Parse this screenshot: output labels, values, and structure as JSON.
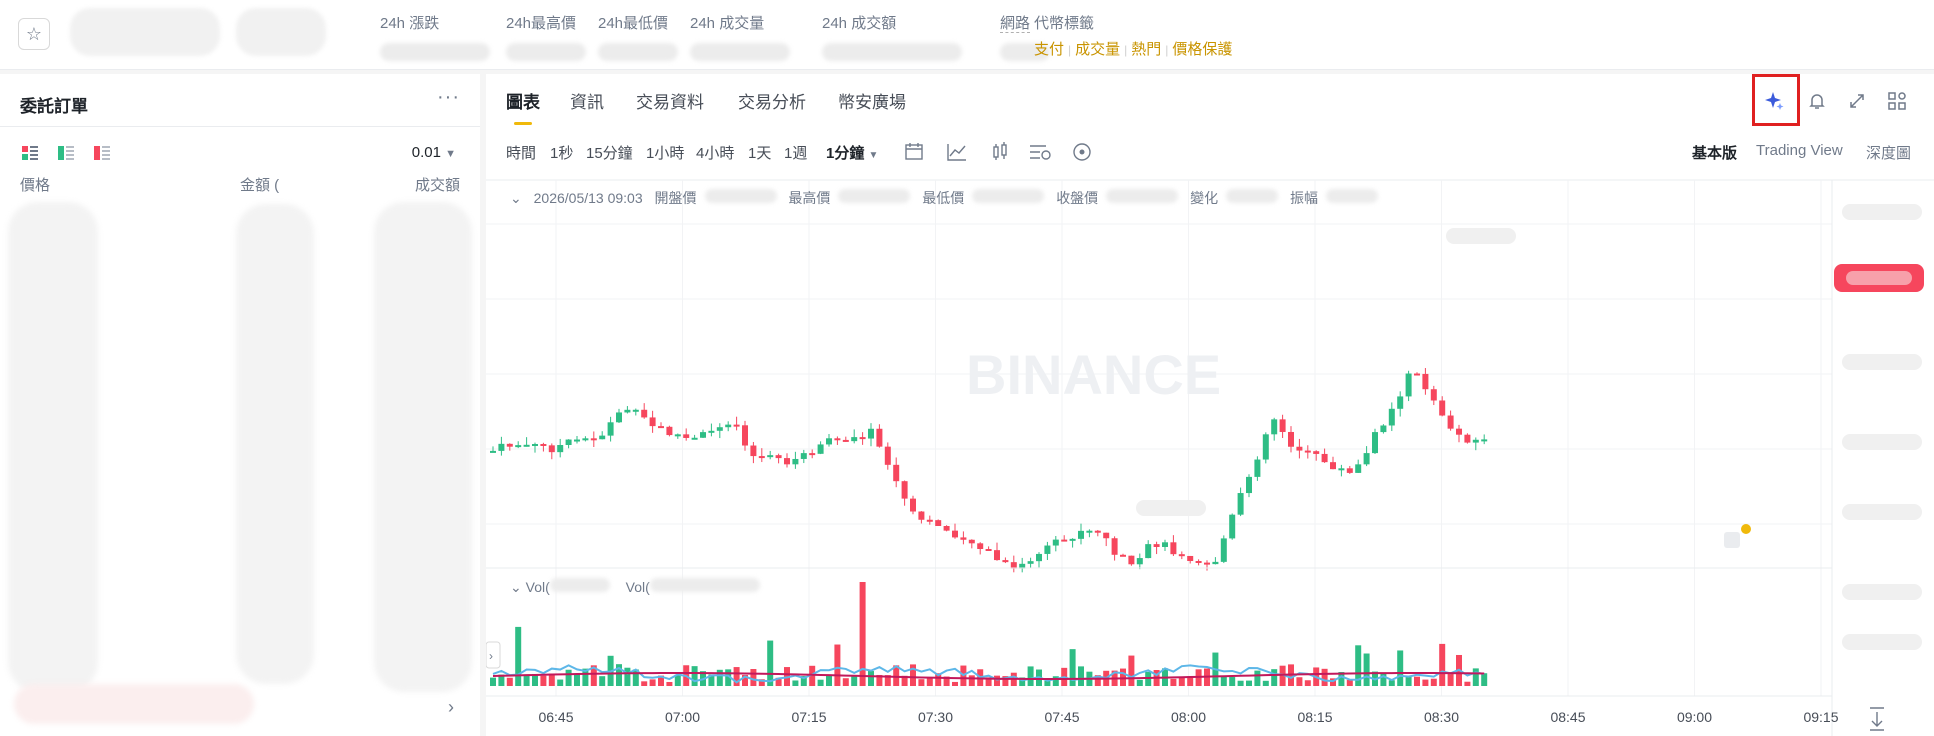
{
  "header": {
    "stats": [
      {
        "label": "24h 漲跌"
      },
      {
        "label": "24h最高價"
      },
      {
        "label": "24h最低價"
      },
      {
        "label": "24h 成交量"
      },
      {
        "label": "24h 成交額"
      },
      {
        "label": "網路"
      },
      {
        "label": "代幣標籤"
      }
    ],
    "tags": [
      "支付",
      "成交量",
      "熱門",
      "價格保護"
    ]
  },
  "orderbook": {
    "title": "委託訂單",
    "more": "···",
    "step": "0.01",
    "columns": [
      "價格",
      "金額 (",
      "成交額"
    ]
  },
  "chart_panel": {
    "tabs": [
      "圖表",
      "資訊",
      "交易資料",
      "交易分析",
      "幣安廣場"
    ],
    "timeframes": [
      "時間",
      "1秒",
      "15分鐘",
      "1小時",
      "4小時",
      "1天",
      "1週",
      "1分鐘"
    ],
    "views": [
      "基本版",
      "Trading View",
      "深度圖"
    ],
    "ohlc": {
      "date": "2026/05/13 09:03",
      "labels": [
        "開盤價",
        "最高價",
        "最低價",
        "收盤價",
        "變化",
        "振幅"
      ]
    },
    "vol_labels": [
      "Vol(",
      "Vol("
    ],
    "watermark": "BINANCE",
    "x_ticks": [
      "06:45",
      "07:00",
      "07:15",
      "07:30",
      "07:45",
      "08:00",
      "08:15",
      "08:30",
      "08:45",
      "09:00",
      "09:15"
    ],
    "icons": {
      "ai": "sparkle-ai-icon",
      "bell": "bell-icon",
      "expand": "expand-icon",
      "layout": "layout-grid-icon"
    },
    "colors": {
      "up": "#2ebd85",
      "down": "#f6465d",
      "accent": "#f0b90b",
      "ma1": "#5db7e8",
      "ma2": "#c2185b"
    }
  },
  "chart_data": {
    "type": "candlestick",
    "x_ticks": [
      "06:45",
      "07:00",
      "07:15",
      "07:30",
      "07:45",
      "08:00",
      "08:15",
      "08:30",
      "08:45",
      "09:00",
      "09:15"
    ],
    "series_shape": [
      63,
      64,
      63,
      63,
      64,
      63,
      64,
      65,
      66,
      67,
      68,
      67,
      66,
      67,
      68,
      69,
      70,
      71,
      72,
      71,
      70,
      69,
      68,
      67,
      68,
      69,
      70,
      71,
      72,
      73,
      74,
      75,
      74,
      73,
      72,
      71,
      70,
      69,
      68,
      67,
      66,
      65,
      64,
      63,
      62,
      61,
      60,
      59,
      58,
      57,
      56,
      55,
      54,
      53,
      52,
      51,
      50,
      49,
      48,
      47,
      46,
      45,
      44,
      43,
      42,
      41,
      42,
      43,
      44,
      45,
      46,
      47,
      48,
      49,
      50,
      51,
      52,
      53,
      54,
      55,
      56,
      57,
      58,
      59,
      60,
      61,
      62,
      63,
      64,
      65,
      66,
      67,
      68,
      69,
      70,
      71,
      72,
      73,
      74,
      75
    ]
  }
}
